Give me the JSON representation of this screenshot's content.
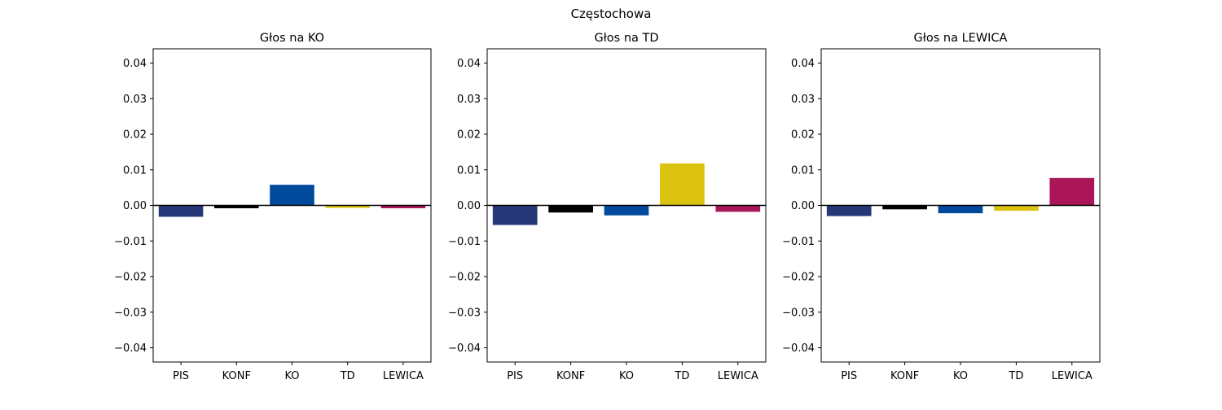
{
  "suptitle": "Częstochowa",
  "chart_data": [
    {
      "type": "bar",
      "title": "Głos na KO",
      "categories": [
        "PIS",
        "KONF",
        "KO",
        "TD",
        "LEWICA"
      ],
      "values": [
        -0.0032,
        -0.0008,
        0.0058,
        -0.0007,
        -0.0008
      ],
      "ylim": [
        -0.044,
        0.044
      ],
      "yticks": [
        -0.04,
        -0.03,
        -0.02,
        -0.01,
        0.0,
        0.01,
        0.02,
        0.03,
        0.04
      ],
      "ytick_labels": [
        "−0.04",
        "−0.03",
        "−0.02",
        "−0.01",
        "0.00",
        "0.01",
        "0.02",
        "0.03",
        "0.04"
      ],
      "colors": [
        "#263777",
        "#000000",
        "#004a9e",
        "#dcc30f",
        "#ab1659"
      ],
      "zero_line": true,
      "grid": false
    },
    {
      "type": "bar",
      "title": "Głos na TD",
      "categories": [
        "PIS",
        "KONF",
        "KO",
        "TD",
        "LEWICA"
      ],
      "values": [
        -0.0055,
        -0.002,
        -0.0028,
        0.0118,
        -0.0018
      ],
      "ylim": [
        -0.044,
        0.044
      ],
      "yticks": [
        -0.04,
        -0.03,
        -0.02,
        -0.01,
        0.0,
        0.01,
        0.02,
        0.03,
        0.04
      ],
      "ytick_labels": [
        "−0.04",
        "−0.03",
        "−0.02",
        "−0.01",
        "0.00",
        "0.01",
        "0.02",
        "0.03",
        "0.04"
      ],
      "colors": [
        "#263777",
        "#000000",
        "#004a9e",
        "#dcc30f",
        "#ab1659"
      ],
      "zero_line": true,
      "grid": false
    },
    {
      "type": "bar",
      "title": "Głos na LEWICA",
      "categories": [
        "PIS",
        "KONF",
        "KO",
        "TD",
        "LEWICA"
      ],
      "values": [
        -0.003,
        -0.0011,
        -0.0022,
        -0.0015,
        0.0077
      ],
      "ylim": [
        -0.044,
        0.044
      ],
      "yticks": [
        -0.04,
        -0.03,
        -0.02,
        -0.01,
        0.0,
        0.01,
        0.02,
        0.03,
        0.04
      ],
      "ytick_labels": [
        "−0.04",
        "−0.03",
        "−0.02",
        "−0.01",
        "0.00",
        "0.01",
        "0.02",
        "0.03",
        "0.04"
      ],
      "colors": [
        "#263777",
        "#000000",
        "#004a9e",
        "#dcc30f",
        "#ab1659"
      ],
      "zero_line": true,
      "grid": false
    }
  ]
}
